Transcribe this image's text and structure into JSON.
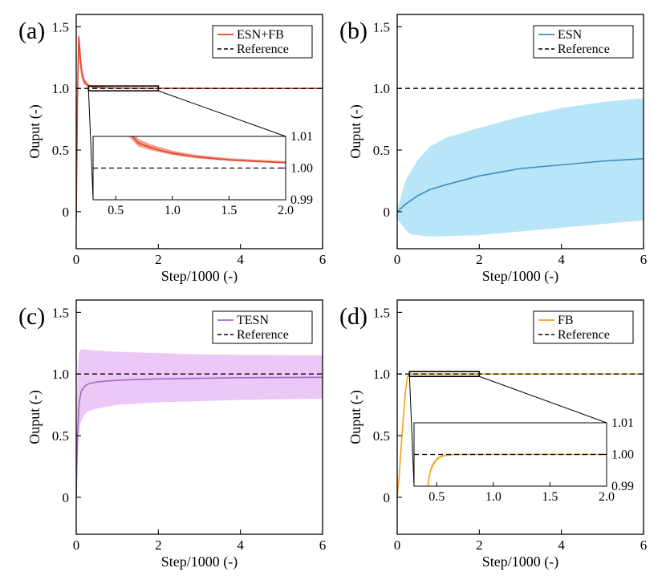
{
  "chart_data": [
    {
      "type": "line",
      "panel_label": "(a)",
      "xlabel": "Step/1000 (-)",
      "ylabel": "Ouput (-)",
      "xlim": [
        0,
        6
      ],
      "ylim": [
        -0.3,
        1.6
      ],
      "xticks": [
        0,
        2,
        4,
        6
      ],
      "yticks": [
        0,
        0.5,
        1.0,
        1.5
      ],
      "xtick_labels": [
        "0",
        "2",
        "4",
        "6"
      ],
      "ytick_labels": [
        "0",
        "0.5",
        "1.0",
        "1.5"
      ],
      "legend": {
        "placement": "top-right",
        "series_label": "ESN+FB",
        "reference_label": "Reference"
      },
      "color": "#e8432b",
      "band_color": "#f4a08c",
      "reference": 1.0,
      "mean": {
        "x": [
          0,
          0.03,
          0.06,
          0.09,
          0.12,
          0.16,
          0.2,
          0.25,
          0.3,
          0.4,
          0.5,
          0.7,
          1.0,
          2.0,
          4.0,
          6.0
        ],
        "y": [
          -0.05,
          0.9,
          1.42,
          1.3,
          1.17,
          1.09,
          1.055,
          1.035,
          1.02,
          1.012,
          1.008,
          1.005,
          1.003,
          1.001,
          1.0,
          1.0
        ]
      },
      "lower": {
        "x": [
          0,
          0.03,
          0.06,
          0.09,
          0.12,
          0.16,
          0.2,
          0.3,
          0.5,
          1.0,
          6.0
        ],
        "y": [
          -0.22,
          0.7,
          1.25,
          1.18,
          1.1,
          1.05,
          1.03,
          1.01,
          1.004,
          1.0,
          1.0
        ]
      },
      "upper": {
        "x": [
          0,
          0.03,
          0.06,
          0.09,
          0.12,
          0.16,
          0.2,
          0.3,
          0.5,
          1.0,
          6.0
        ],
        "y": [
          0.1,
          1.05,
          1.48,
          1.38,
          1.23,
          1.13,
          1.08,
          1.035,
          1.012,
          1.004,
          1.001
        ]
      },
      "zoom_box": {
        "x": [
          0.3,
          2.0
        ],
        "y": [
          0.99,
          1.01
        ]
      },
      "inset": {
        "xlim": [
          0.3,
          2.0
        ],
        "ylim": [
          0.99,
          1.01
        ],
        "xticks": [
          0.5,
          1.0,
          1.5,
          2.0
        ],
        "yticks": [
          0.99,
          1.0,
          1.01
        ],
        "xtick_labels": [
          "0.5",
          "1.0",
          "1.5",
          "2.0"
        ],
        "ytick_labels": [
          "0.99",
          "1.00",
          "1.01"
        ],
        "mean": {
          "x": [
            0.3,
            0.6,
            0.7,
            0.8,
            0.9,
            1.0,
            1.2,
            1.4,
            1.6,
            1.8,
            2.0
          ],
          "y": [
            1.02,
            1.012,
            1.0079,
            1.0066,
            1.0055,
            1.0047,
            1.0036,
            1.0029,
            1.0024,
            1.002,
            1.0017
          ]
        },
        "lower": {
          "x": [
            0.3,
            0.6,
            0.7,
            0.8,
            1.0,
            1.2,
            1.5,
            2.0
          ],
          "y": [
            1.018,
            1.0105,
            1.0068,
            1.0057,
            1.0041,
            1.0031,
            1.0022,
            1.0015
          ]
        },
        "upper": {
          "x": [
            0.3,
            0.6,
            0.7,
            0.8,
            1.0,
            1.2,
            1.5,
            2.0
          ],
          "y": [
            1.022,
            1.0135,
            1.0092,
            1.0076,
            1.0055,
            1.0042,
            1.0031,
            1.0022
          ]
        }
      }
    },
    {
      "type": "line",
      "panel_label": "(b)",
      "xlabel": "Step/1000 (-)",
      "ylabel": "Ouput (-)",
      "xlim": [
        0,
        6
      ],
      "ylim": [
        -0.3,
        1.6
      ],
      "xticks": [
        0,
        2,
        4,
        6
      ],
      "yticks": [
        0,
        0.5,
        1.0,
        1.5
      ],
      "xtick_labels": [
        "0",
        "2",
        "4",
        "6"
      ],
      "ytick_labels": [
        "0",
        "0.5",
        "1.0",
        "1.5"
      ],
      "legend": {
        "placement": "top-right",
        "series_label": "ESN",
        "reference_label": "Reference"
      },
      "color": "#3a8fc2",
      "band_color": "#b9e5f8",
      "reference": 1.0,
      "mean": {
        "x": [
          0,
          0.2,
          0.5,
          0.8,
          1.2,
          2.0,
          3.0,
          4.0,
          5.0,
          6.0
        ],
        "y": [
          0,
          0.06,
          0.13,
          0.18,
          0.22,
          0.29,
          0.35,
          0.38,
          0.41,
          0.43
        ]
      },
      "lower": {
        "x": [
          0,
          0.3,
          0.7,
          1.0,
          2.0,
          3.0,
          4.0,
          5.0,
          6.0
        ],
        "y": [
          -0.06,
          -0.18,
          -0.2,
          -0.2,
          -0.19,
          -0.16,
          -0.13,
          -0.1,
          -0.07
        ]
      },
      "upper": {
        "x": [
          0,
          0.2,
          0.5,
          0.8,
          1.2,
          2.0,
          3.0,
          4.0,
          5.0,
          6.0
        ],
        "y": [
          0.02,
          0.25,
          0.42,
          0.53,
          0.6,
          0.68,
          0.77,
          0.84,
          0.89,
          0.92
        ]
      }
    },
    {
      "type": "line",
      "panel_label": "(c)",
      "xlabel": "Step/1000 (-)",
      "ylabel": "Ouput (-)",
      "xlim": [
        0,
        6
      ],
      "ylim": [
        -0.3,
        1.6
      ],
      "xticks": [
        0,
        2,
        4,
        6
      ],
      "yticks": [
        0,
        0.5,
        1.0,
        1.5
      ],
      "xtick_labels": [
        "0",
        "2",
        "4",
        "6"
      ],
      "ytick_labels": [
        "0",
        "0.5",
        "1.0",
        "1.5"
      ],
      "legend": {
        "placement": "top-right",
        "series_label": "TESN",
        "reference_label": "Reference"
      },
      "color": "#a56bbd",
      "band_color": "#ebc8f6",
      "reference": 1.0,
      "mean": {
        "x": [
          0,
          0.03,
          0.07,
          0.12,
          0.2,
          0.3,
          0.5,
          0.8,
          1.2,
          2.0,
          3.0,
          4.0,
          6.0
        ],
        "y": [
          0,
          0.5,
          0.76,
          0.86,
          0.9,
          0.92,
          0.935,
          0.945,
          0.952,
          0.96,
          0.965,
          0.97,
          0.973
        ]
      },
      "lower": {
        "x": [
          0,
          0.05,
          0.1,
          0.2,
          0.3,
          0.5,
          1.0,
          2.0,
          3.0,
          4.0,
          6.0
        ],
        "y": [
          0,
          0.4,
          0.6,
          0.67,
          0.7,
          0.72,
          0.75,
          0.77,
          0.78,
          0.79,
          0.8
        ]
      },
      "upper": {
        "x": [
          0,
          0.03,
          0.07,
          0.12,
          0.2,
          0.5,
          1.0,
          2.0,
          3.0,
          4.0,
          6.0
        ],
        "y": [
          0.3,
          1.0,
          1.18,
          1.2,
          1.2,
          1.19,
          1.18,
          1.17,
          1.16,
          1.155,
          1.15
        ]
      }
    },
    {
      "type": "line",
      "panel_label": "(d)",
      "xlabel": "Step/1000 (-)",
      "ylabel": "Ouput (-)",
      "xlim": [
        0,
        6
      ],
      "ylim": [
        -0.3,
        1.6
      ],
      "xticks": [
        0,
        2,
        4,
        6
      ],
      "yticks": [
        0,
        0.5,
        1.0,
        1.5
      ],
      "xtick_labels": [
        "0",
        "2",
        "4",
        "6"
      ],
      "ytick_labels": [
        "0",
        "0.5",
        "1.0",
        "1.5"
      ],
      "legend": {
        "placement": "top-right",
        "series_label": "FB",
        "reference_label": "Reference"
      },
      "color": "#f5a11c",
      "band_color": "#f9c978",
      "reference": 1.0,
      "mean": {
        "x": [
          0,
          0.05,
          0.1,
          0.15,
          0.2,
          0.25,
          0.3,
          6.0
        ],
        "y": [
          0,
          0.18,
          0.42,
          0.65,
          0.85,
          0.98,
          1.0,
          1.0
        ]
      },
      "zoom_box": {
        "x": [
          0.3,
          2.0
        ],
        "y": [
          0.99,
          1.01
        ]
      },
      "inset": {
        "xlim": [
          0.3,
          2.0
        ],
        "ylim": [
          0.99,
          1.01
        ],
        "xticks": [
          0.5,
          1.0,
          1.5,
          2.0
        ],
        "yticks": [
          0.99,
          1.0,
          1.01
        ],
        "xtick_labels": [
          "0.5",
          "1.0",
          "1.5",
          "2.0"
        ],
        "ytick_labels": [
          "0.99",
          "1.00",
          "1.01"
        ],
        "mean": {
          "x": [
            0.42,
            0.43,
            0.45,
            0.47,
            0.5,
            0.53,
            0.56,
            0.6,
            0.65,
            0.7,
            0.8,
            1.0,
            2.0
          ],
          "y": [
            0.989,
            0.9925,
            0.9955,
            0.9972,
            0.9985,
            0.9992,
            0.9996,
            0.9998,
            0.99995,
            1.0,
            1.0,
            1.0,
            1.0
          ]
        },
        "lower": {
          "x": [
            0.42,
            0.45,
            0.5,
            0.55,
            0.6,
            0.7,
            2.0
          ],
          "y": [
            0.989,
            0.9948,
            0.998,
            0.9992,
            0.9996,
            0.99985,
            0.99985
          ]
        },
        "upper": {
          "x": [
            0.42,
            0.45,
            0.5,
            0.55,
            0.6,
            0.7,
            2.0
          ],
          "y": [
            0.9895,
            0.9962,
            0.999,
            0.9998,
            1.0002,
            1.00025,
            1.00025
          ]
        }
      }
    }
  ]
}
